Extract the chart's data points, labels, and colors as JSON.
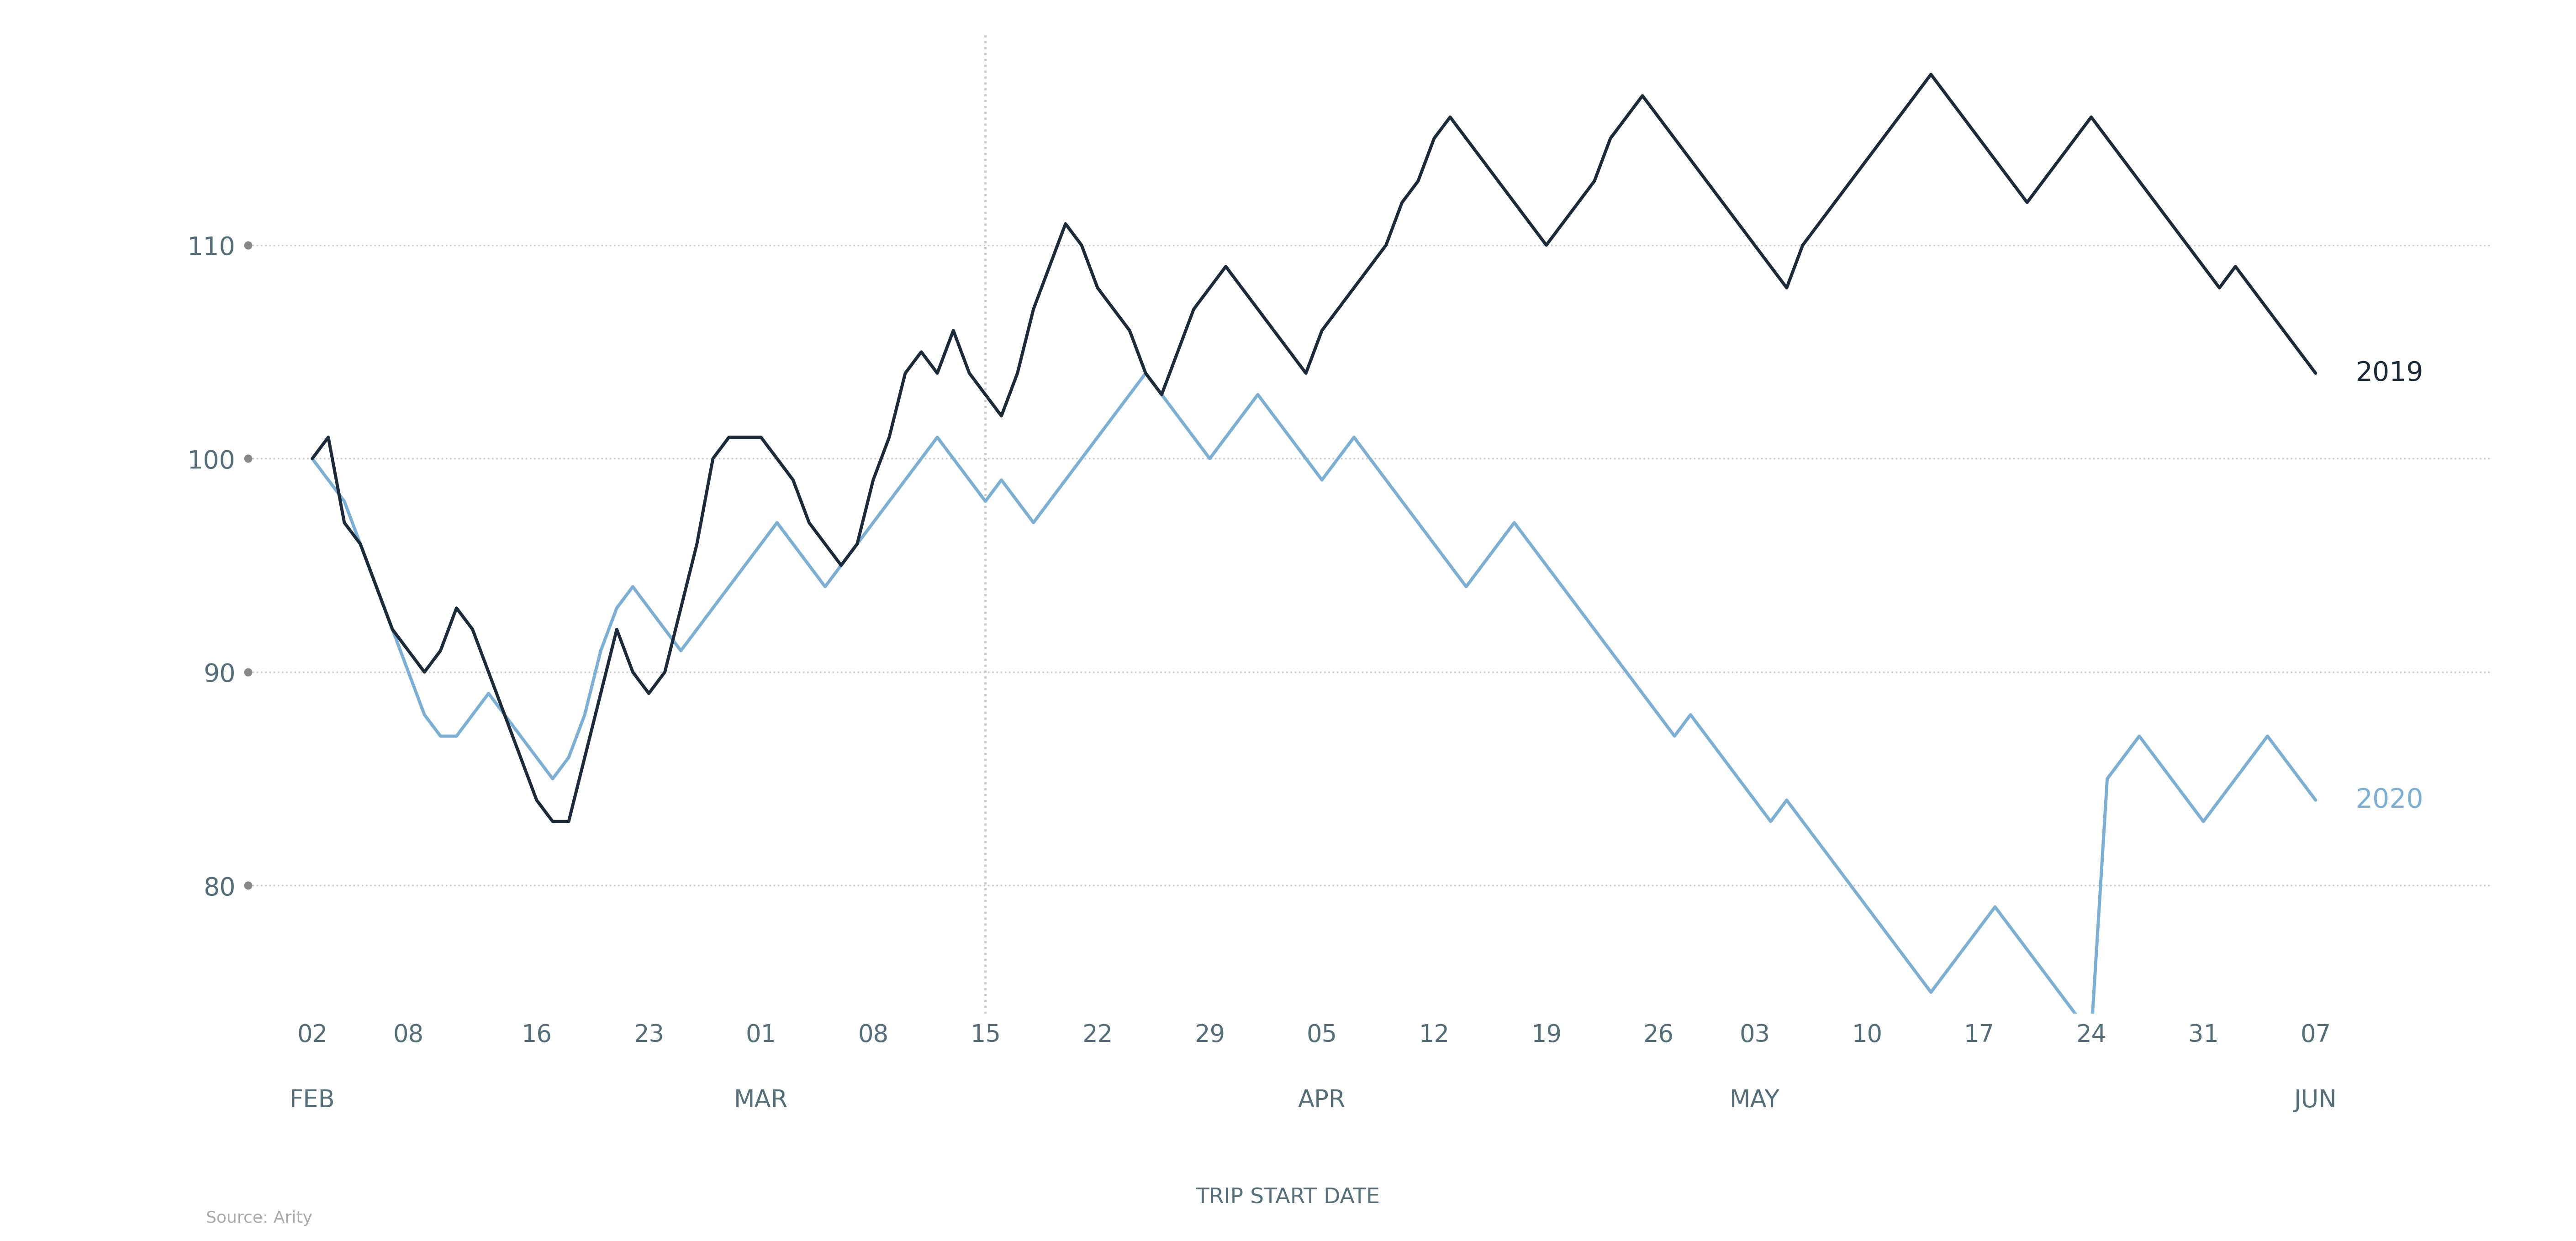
{
  "title": "TRIP START DATE",
  "source": "Source: Arity",
  "line_2019_color": "#1c2b3a",
  "line_2020_color": "#7bafd4",
  "background_color": "#ffffff",
  "grid_color": "#cccccc",
  "label_color": "#546e7a",
  "source_color": "#aaaaaa",
  "ylim": [
    74,
    120
  ],
  "yticks": [
    80,
    90,
    100,
    110
  ],
  "vline_x": 42,
  "x_tick_positions": [
    0,
    6,
    14,
    21,
    28,
    35,
    42,
    49,
    56,
    63,
    70,
    77,
    84,
    90,
    97,
    104,
    111,
    118,
    125
  ],
  "x_tick_labels": [
    "02",
    "08",
    "16",
    "23",
    "01",
    "08",
    "15",
    "22",
    "29",
    "05",
    "12",
    "19",
    "26",
    "03",
    "10",
    "17",
    "24",
    "31",
    "07"
  ],
  "month_positions": [
    0,
    28,
    63,
    90,
    125
  ],
  "month_labels": [
    "FEB",
    "MAR",
    "APR",
    "MAY",
    "JUN"
  ],
  "values_2019": [
    100,
    101,
    97,
    96,
    94,
    92,
    91,
    90,
    91,
    93,
    92,
    90,
    88,
    86,
    84,
    83,
    83,
    86,
    89,
    92,
    90,
    89,
    90,
    93,
    96,
    100,
    101,
    101,
    101,
    100,
    99,
    97,
    96,
    95,
    96,
    99,
    101,
    104,
    105,
    104,
    106,
    104,
    103,
    102,
    104,
    107,
    109,
    111,
    110,
    108,
    107,
    106,
    104,
    103,
    105,
    107,
    108,
    109,
    108,
    107,
    106,
    105,
    104,
    106,
    107,
    108,
    109,
    110,
    112,
    113,
    115,
    116,
    115,
    114,
    113,
    112,
    111,
    110,
    111,
    112,
    113,
    115,
    116,
    117,
    116,
    115,
    114,
    113,
    112,
    111,
    110,
    109,
    108,
    110,
    111,
    112,
    113,
    114,
    115,
    116,
    117,
    118,
    117,
    116,
    115,
    114,
    113,
    112,
    113,
    114,
    115,
    116,
    115,
    114,
    113,
    112,
    111,
    110,
    109,
    108,
    109,
    108,
    107,
    106,
    105,
    104
  ],
  "values_2020": [
    100,
    99,
    98,
    96,
    94,
    92,
    90,
    88,
    87,
    87,
    88,
    89,
    88,
    87,
    86,
    85,
    86,
    88,
    91,
    93,
    94,
    93,
    92,
    91,
    92,
    93,
    94,
    95,
    96,
    97,
    96,
    95,
    94,
    95,
    96,
    97,
    98,
    99,
    100,
    101,
    100,
    99,
    98,
    99,
    98,
    97,
    98,
    99,
    100,
    101,
    102,
    103,
    104,
    103,
    102,
    101,
    100,
    101,
    102,
    103,
    102,
    101,
    100,
    99,
    100,
    101,
    100,
    99,
    98,
    97,
    96,
    95,
    94,
    95,
    96,
    97,
    96,
    95,
    94,
    93,
    92,
    91,
    90,
    89,
    88,
    87,
    88,
    87,
    86,
    85,
    84,
    83,
    84,
    83,
    82,
    81,
    80,
    79,
    78,
    77,
    76,
    75,
    76,
    77,
    78,
    79,
    78,
    77,
    76,
    75,
    74,
    73,
    85,
    86,
    87,
    86,
    85,
    84,
    83,
    84,
    85,
    86,
    87,
    86,
    85,
    84
  ]
}
